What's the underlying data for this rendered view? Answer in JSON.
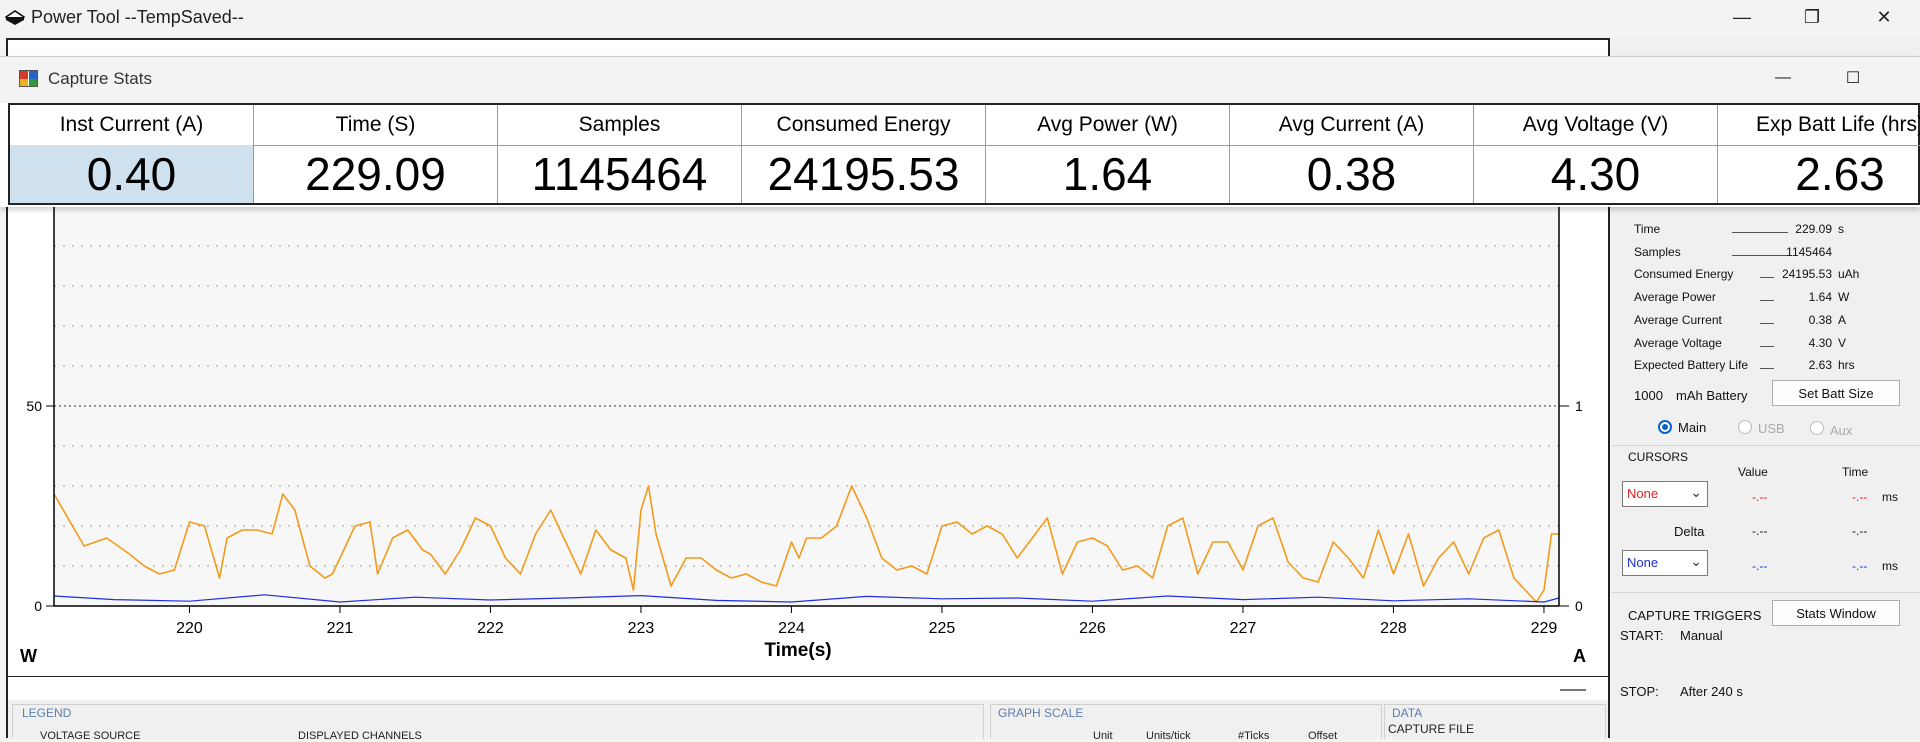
{
  "app": {
    "title": "Power Tool --TempSaved--",
    "minimize_glyph": "—",
    "restore_glyph": "❐",
    "close_glyph": "✕"
  },
  "stats_window": {
    "title": "Capture Stats",
    "minimize_glyph": "—",
    "maximize_glyph": "☐",
    "columns": [
      {
        "label": "Inst Current (A)",
        "value": "0.40"
      },
      {
        "label": "Time (S)",
        "value": "229.09"
      },
      {
        "label": "Samples",
        "value": "1145464"
      },
      {
        "label": "Consumed Energy",
        "value": "24195.53"
      },
      {
        "label": "Avg Power (W)",
        "value": "1.64"
      },
      {
        "label": "Avg Current (A)",
        "value": "0.38"
      },
      {
        "label": "Avg Voltage (V)",
        "value": "4.30"
      },
      {
        "label": "Exp Batt Life (hrs)",
        "value": "2.63"
      }
    ]
  },
  "right_panel": {
    "stats": [
      {
        "label": "Time",
        "value": "229.09",
        "unit": "s"
      },
      {
        "label": "Samples",
        "value": "1145464",
        "unit": ""
      },
      {
        "label": "Consumed Energy",
        "value": "24195.53",
        "unit": "uAh"
      },
      {
        "label": "Average Power",
        "value": "1.64",
        "unit": "W"
      },
      {
        "label": "Average Current",
        "value": "0.38",
        "unit": "A"
      },
      {
        "label": "Average Voltage",
        "value": "4.30",
        "unit": "V"
      },
      {
        "label": "Expected Battery Life",
        "value": "2.63",
        "unit": "hrs"
      }
    ],
    "battery_size": "1000",
    "battery_unit": "mAh Battery",
    "set_batt_size_label": "Set Batt Size",
    "source_options": [
      "Main",
      "USB",
      "Aux"
    ],
    "source_selected": "Main",
    "cursors": {
      "title": "CURSORS",
      "value_header": "Value",
      "time_header": "Time",
      "cursor1_select": "None",
      "cursor1_value": "-.--",
      "cursor1_time": "-.--",
      "cursor1_unit": "ms",
      "delta_label": "Delta",
      "delta_value": "-.--",
      "delta_time": "-.--",
      "cursor2_select": "None",
      "cursor2_value": "-.--",
      "cursor2_time": "-.--",
      "cursor2_unit": "ms"
    },
    "capture_triggers": {
      "title": "CAPTURE TRIGGERS",
      "stats_window_button": "Stats Window",
      "start_label": "START:",
      "start_value": "Manual",
      "stop_label": "STOP:",
      "stop_value": "After 240 s"
    }
  },
  "bottom": {
    "legend_title": "LEGEND",
    "voltage_source_label": "VOLTAGE SOURCE",
    "displayed_channels_label": "DISPLAYED CHANNELS",
    "graph_scale_title": "GRAPH SCALE",
    "unit_header": "Unit",
    "units_tick_header": "Units/tick",
    "ticks_header": "#Ticks",
    "offset_header": "Offset",
    "data_title": "DATA",
    "capture_file_label": "CAPTURE FILE"
  },
  "chart_data": {
    "type": "line",
    "xlabel": "Time(s)",
    "left_unit": "W",
    "right_unit": "A",
    "xlim": [
      219.1,
      229.1
    ],
    "x_ticks": [
      220,
      221,
      222,
      223,
      224,
      225,
      226,
      227,
      228,
      229
    ],
    "ylim_left": [
      0,
      100
    ],
    "ylim_right": [
      0,
      2
    ],
    "left_ticks": [
      0,
      50
    ],
    "right_ticks": [
      0,
      1
    ],
    "grid": true,
    "series": [
      {
        "axis": "left",
        "color": "#f39a1a",
        "x": [
          219.1,
          219.3,
          219.45,
          219.6,
          219.7,
          219.8,
          219.9,
          220.0,
          220.1,
          220.2,
          220.25,
          220.35,
          220.45,
          220.55,
          220.62,
          220.7,
          220.8,
          220.9,
          220.95,
          221.0,
          221.1,
          221.2,
          221.25,
          221.35,
          221.45,
          221.55,
          221.6,
          221.7,
          221.8,
          221.9,
          222.0,
          222.1,
          222.2,
          222.3,
          222.4,
          222.5,
          222.6,
          222.7,
          222.8,
          222.9,
          222.95,
          223.0,
          223.05,
          223.1,
          223.2,
          223.3,
          223.4,
          223.5,
          223.6,
          223.7,
          223.8,
          223.9,
          224.0,
          224.05,
          224.1,
          224.2,
          224.3,
          224.4,
          224.5,
          224.6,
          224.7,
          224.8,
          224.9,
          225.0,
          225.1,
          225.2,
          225.3,
          225.4,
          225.5,
          225.6,
          225.7,
          225.8,
          225.9,
          226.0,
          226.1,
          226.2,
          226.3,
          226.4,
          226.5,
          226.6,
          226.7,
          226.8,
          226.9,
          227.0,
          227.1,
          227.2,
          227.3,
          227.4,
          227.5,
          227.6,
          227.7,
          227.8,
          227.9,
          228.0,
          228.1,
          228.2,
          228.3,
          228.4,
          228.5,
          228.6,
          228.7,
          228.8,
          228.9,
          228.95,
          229.0,
          229.05,
          229.1
        ],
        "y": [
          28,
          15,
          17,
          13,
          10,
          8,
          9,
          21,
          20,
          7,
          17,
          19,
          19,
          18,
          28,
          24,
          10,
          7,
          8,
          12,
          20,
          21,
          8,
          17,
          19,
          14,
          13,
          8,
          14,
          22,
          20,
          12,
          8,
          18,
          24,
          16,
          8,
          19,
          14,
          12,
          4,
          24,
          30,
          18,
          5,
          12,
          12,
          9,
          7,
          8,
          6,
          5,
          16,
          12,
          17,
          17,
          20,
          30,
          22,
          12,
          9,
          10,
          8,
          20,
          21,
          18,
          20,
          18,
          12,
          17,
          22,
          8,
          16,
          17,
          15,
          9,
          10,
          7,
          20,
          22,
          8,
          16,
          16,
          9,
          20,
          22,
          11,
          7,
          6,
          16,
          12,
          7,
          19,
          8,
          18,
          5,
          12,
          16,
          8,
          17,
          19,
          7,
          3,
          1,
          4,
          18,
          18
        ]
      },
      {
        "axis": "left",
        "color": "#1f2ee0",
        "x": [
          219.1,
          219.5,
          220.0,
          220.5,
          221.0,
          221.5,
          222.0,
          222.5,
          223.0,
          223.5,
          224.0,
          224.5,
          225.0,
          225.5,
          226.0,
          226.5,
          227.0,
          227.5,
          228.0,
          228.5,
          229.0,
          229.1
        ],
        "y": [
          2.5,
          1.6,
          1.2,
          2.8,
          1.0,
          2.2,
          1.5,
          2.0,
          2.6,
          1.4,
          1.0,
          2.4,
          1.8,
          2.0,
          1.2,
          2.5,
          1.6,
          2.2,
          1.3,
          1.8,
          1.0,
          2.0
        ]
      }
    ]
  }
}
